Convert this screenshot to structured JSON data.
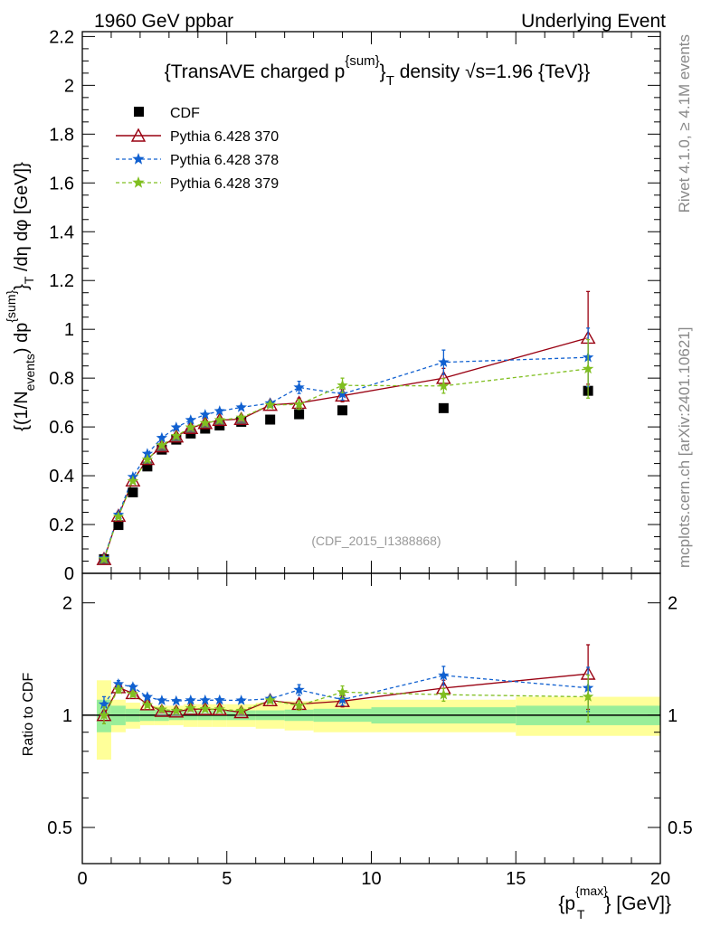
{
  "header": {
    "left": "1960 GeV ppbar",
    "right": "Underlying Event"
  },
  "side": {
    "top": "Rivet 4.1.0, ≥ 4.1M events",
    "bottom": "mcplots.cern.ch [arXiv:2401.10621]"
  },
  "chart_data": {
    "type": "scatter",
    "title_parts": [
      "{TransAVE charged p",
      "{sum}",
      "}",
      "T",
      " density √s=1.96 {TeV}}"
    ],
    "xlabel_parts": [
      "{p",
      "{max}",
      "T",
      "} [GeV]}"
    ],
    "ylabel_parts": [
      "{(1/N",
      "events",
      ") dp",
      "{sum}",
      "}",
      "T",
      " /dη  dφ [GeV]}"
    ],
    "ratio_ylabel": "Ratio to CDF",
    "watermark": "(CDF_2015_I1388868)",
    "xlim": [
      0,
      20
    ],
    "ylim": [
      0,
      2.22
    ],
    "ratio_ylim": [
      0.4,
      2.4
    ],
    "xticks": [
      "0",
      "5",
      "10",
      "15",
      "20"
    ],
    "yticks": [
      "0",
      "0.2",
      "0.4",
      "0.6",
      "0.8",
      "1",
      "1.2",
      "1.4",
      "1.6",
      "1.8",
      "2",
      "2.2"
    ],
    "ratio_yticks": [
      "0.5",
      "1",
      "2"
    ],
    "x": [
      0.75,
      1.25,
      1.75,
      2.25,
      2.75,
      3.25,
      3.75,
      4.25,
      4.75,
      5.5,
      6.5,
      7.5,
      9.0,
      12.5,
      17.5
    ],
    "bin_edges": [
      0.5,
      1.0,
      1.5,
      2.0,
      2.5,
      3.0,
      3.5,
      4.0,
      4.5,
      5.0,
      6.0,
      7.0,
      8.0,
      10.0,
      15.0,
      20.0
    ],
    "cdf_band_inner": [
      0.1,
      0.06,
      0.04,
      0.035,
      0.035,
      0.03,
      0.03,
      0.03,
      0.03,
      0.03,
      0.03,
      0.035,
      0.04,
      0.05,
      0.06
    ],
    "cdf_band_outer": [
      0.24,
      0.1,
      0.08,
      0.06,
      0.06,
      0.06,
      0.07,
      0.07,
      0.07,
      0.07,
      0.08,
      0.09,
      0.1,
      0.1,
      0.12
    ],
    "series": [
      {
        "name": "CDF",
        "color": "#000000",
        "marker": "square",
        "values": [
          0.058,
          0.198,
          0.332,
          0.438,
          0.507,
          0.548,
          0.573,
          0.593,
          0.606,
          0.621,
          0.63,
          0.652,
          0.668,
          0.677,
          0.748
        ],
        "errors": [
          0.005,
          0.008,
          0.01,
          0.01,
          0.01,
          0.01,
          0.01,
          0.01,
          0.01,
          0.01,
          0.01,
          0.012,
          0.012,
          0.015,
          0.02
        ]
      },
      {
        "name": "Pythia 6.428 370",
        "color": "#990011",
        "marker": "triangle",
        "line": "solid",
        "values": [
          0.058,
          0.235,
          0.38,
          0.468,
          0.52,
          0.56,
          0.595,
          0.615,
          0.628,
          0.632,
          0.69,
          0.698,
          0.728,
          0.8,
          0.965
        ],
        "errors": [
          0.003,
          0.005,
          0.006,
          0.006,
          0.006,
          0.006,
          0.007,
          0.007,
          0.007,
          0.007,
          0.01,
          0.02,
          0.025,
          0.04,
          0.19
        ]
      },
      {
        "name": "Pythia 6.428 378",
        "color": "#1060d0",
        "marker": "star",
        "line": "dashed",
        "values": [
          0.062,
          0.24,
          0.395,
          0.49,
          0.555,
          0.598,
          0.628,
          0.65,
          0.665,
          0.68,
          0.697,
          0.762,
          0.735,
          0.865,
          0.885
        ],
        "errors": [
          0.003,
          0.005,
          0.006,
          0.006,
          0.006,
          0.006,
          0.007,
          0.007,
          0.007,
          0.007,
          0.01,
          0.025,
          0.025,
          0.05,
          0.12
        ]
      },
      {
        "name": "Pythia 6.428 379",
        "color": "#80bf20",
        "marker": "star",
        "line": "dashed",
        "values": [
          0.058,
          0.232,
          0.378,
          0.466,
          0.525,
          0.563,
          0.598,
          0.616,
          0.628,
          0.638,
          0.69,
          0.692,
          0.77,
          0.768,
          0.838
        ],
        "errors": [
          0.003,
          0.005,
          0.006,
          0.006,
          0.006,
          0.006,
          0.007,
          0.007,
          0.007,
          0.007,
          0.01,
          0.02,
          0.03,
          0.03,
          0.12
        ]
      }
    ]
  }
}
